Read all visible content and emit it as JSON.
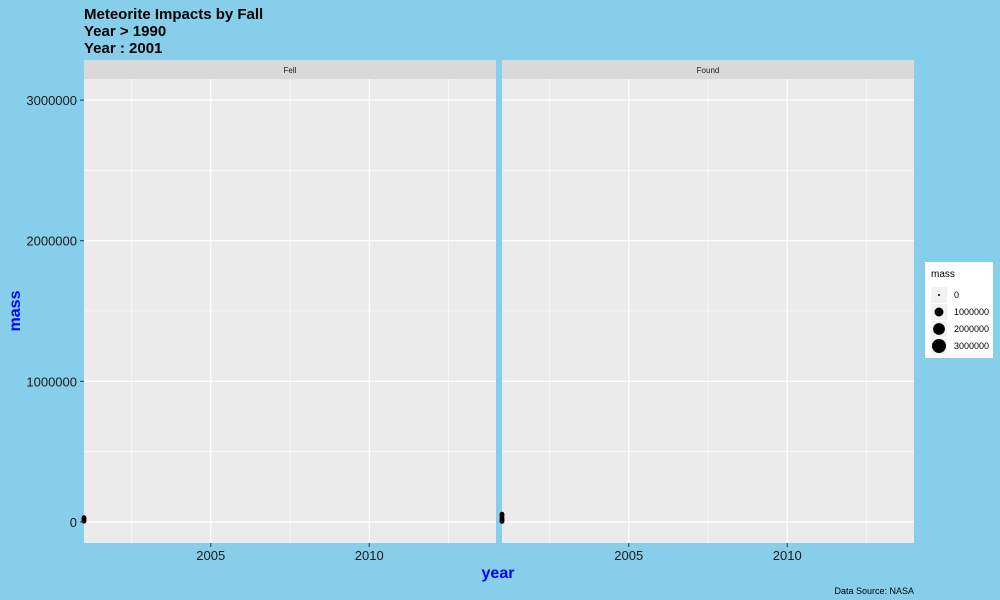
{
  "chart_data": {
    "type": "scatter",
    "title": "Meteorite Impacts by Fall",
    "subtitle_lines": [
      "Year > 1990",
      "Year : 2001"
    ],
    "xlabel": "year",
    "ylabel": "mass",
    "caption": "Data Source: NASA",
    "xlim": [
      2001,
      2014
    ],
    "ylim": [
      -150000,
      3150000
    ],
    "x_ticks": [
      2005,
      2010
    ],
    "x_tick_labels": [
      "2005",
      "2010"
    ],
    "y_ticks": [
      0,
      1000000,
      2000000,
      3000000
    ],
    "y_tick_labels": [
      "0",
      "1000000",
      "2000000",
      "3000000"
    ],
    "facets": [
      {
        "label": "Fell",
        "points": [
          {
            "x": 2001,
            "y": 5000
          },
          {
            "x": 2001,
            "y": 12000
          },
          {
            "x": 2001,
            "y": 22000
          },
          {
            "x": 2001,
            "y": 30000
          }
        ]
      },
      {
        "label": "Found",
        "points": [
          {
            "x": 2001,
            "y": 3000
          },
          {
            "x": 2001,
            "y": 10000
          },
          {
            "x": 2001,
            "y": 20000
          },
          {
            "x": 2001,
            "y": 30000
          },
          {
            "x": 2001,
            "y": 45000
          },
          {
            "x": 2001,
            "y": 55000
          }
        ]
      }
    ],
    "legend": {
      "title": "mass",
      "position": "right",
      "entries": [
        {
          "label": "0",
          "value": 0
        },
        {
          "label": "1000000",
          "value": 1000000
        },
        {
          "label": "2000000",
          "value": 2000000
        },
        {
          "label": "3000000",
          "value": 3000000
        }
      ]
    },
    "colors": {
      "background": "#87ceeb",
      "panel": "#ebebeb",
      "strip": "#d9d9d9",
      "grid": "#ffffff",
      "point": "#000000",
      "axis_title": "#0000ff"
    }
  }
}
